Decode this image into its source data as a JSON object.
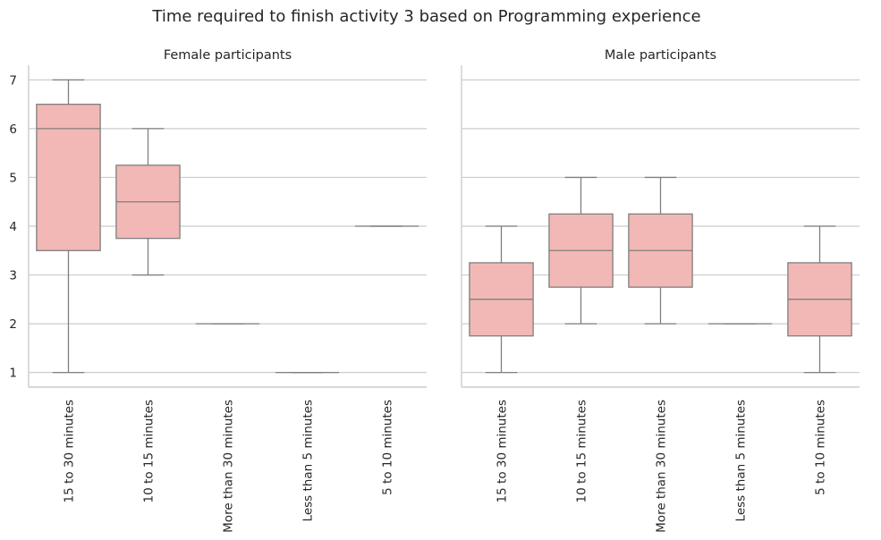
{
  "figure": {
    "title": "Time required to finish activity 3 based on Programming experience"
  },
  "colors": {
    "box_fill": "#f2b8b5",
    "box_edge": "#7f7f7f",
    "grid": "#cccccc",
    "text": "#262626"
  },
  "chart_data": [
    {
      "type": "box",
      "title": "Female participants",
      "xlabel": "",
      "ylabel": "",
      "ylim": [
        0.7,
        7.3
      ],
      "yticks": [
        "1",
        "2",
        "3",
        "4",
        "5",
        "6",
        "7"
      ],
      "grid": "horizontal",
      "categories": [
        "15 to 30 minutes",
        "10 to 15 minutes",
        "More than 30 minutes",
        "Less than 5 minutes",
        "5 to 10 minutes"
      ],
      "boxes": [
        {
          "min": 1,
          "q1": 3.5,
          "median": 6,
          "q3": 6.5,
          "max": 7
        },
        {
          "min": 3,
          "q1": 3.75,
          "median": 4.5,
          "q3": 5.25,
          "max": 6
        },
        {
          "min": 2,
          "q1": 2,
          "median": 2,
          "q3": 2,
          "max": 2
        },
        {
          "min": 1,
          "q1": 1,
          "median": 1,
          "q3": 1,
          "max": 1
        },
        {
          "min": 4,
          "q1": 4,
          "median": 4,
          "q3": 4,
          "max": 4
        }
      ]
    },
    {
      "type": "box",
      "title": "Male participants",
      "xlabel": "",
      "ylabel": "",
      "ylim": [
        0.7,
        7.3
      ],
      "yticks": [],
      "grid": "horizontal",
      "categories": [
        "15 to 30 minutes",
        "10 to 15 minutes",
        "More than 30 minutes",
        "Less than 5 minutes",
        "5 to 10 minutes"
      ],
      "boxes": [
        {
          "min": 1,
          "q1": 1.75,
          "median": 2.5,
          "q3": 3.25,
          "max": 4
        },
        {
          "min": 2,
          "q1": 2.75,
          "median": 3.5,
          "q3": 4.25,
          "max": 5
        },
        {
          "min": 2,
          "q1": 2.75,
          "median": 3.5,
          "q3": 4.25,
          "max": 5
        },
        {
          "min": 2,
          "q1": 2,
          "median": 2,
          "q3": 2,
          "max": 2
        },
        {
          "min": 1,
          "q1": 1.75,
          "median": 2.5,
          "q3": 3.25,
          "max": 4
        }
      ]
    }
  ]
}
